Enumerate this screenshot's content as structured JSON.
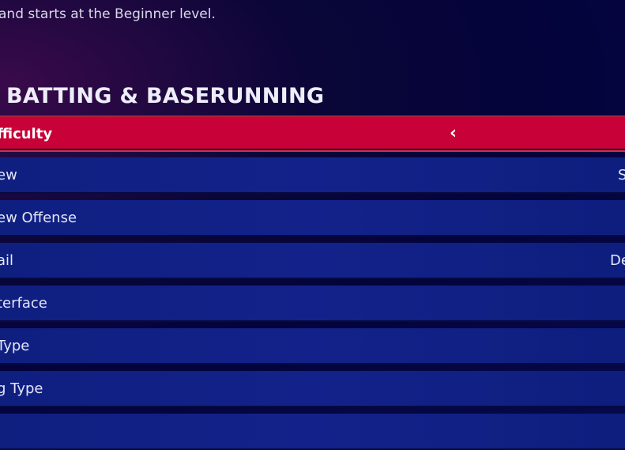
{
  "description_tail": "and starts at the Beginner level.",
  "section_title": "BATTING & BASERUNNING",
  "rows": [
    {
      "label": "fficulty",
      "value": "",
      "selected": true,
      "icon": "chevron-left-icon"
    },
    {
      "label": "ew",
      "value": "S"
    },
    {
      "label": "ew Offense",
      "value": ""
    },
    {
      "label": "ail",
      "value": "De"
    },
    {
      "label": "terface",
      "value": ""
    },
    {
      "label": "Type",
      "value": ""
    },
    {
      "label": "g Type",
      "value": ""
    }
  ],
  "colors": {
    "selected": "#c80238",
    "row": "#12228a",
    "background": "#04033a"
  }
}
